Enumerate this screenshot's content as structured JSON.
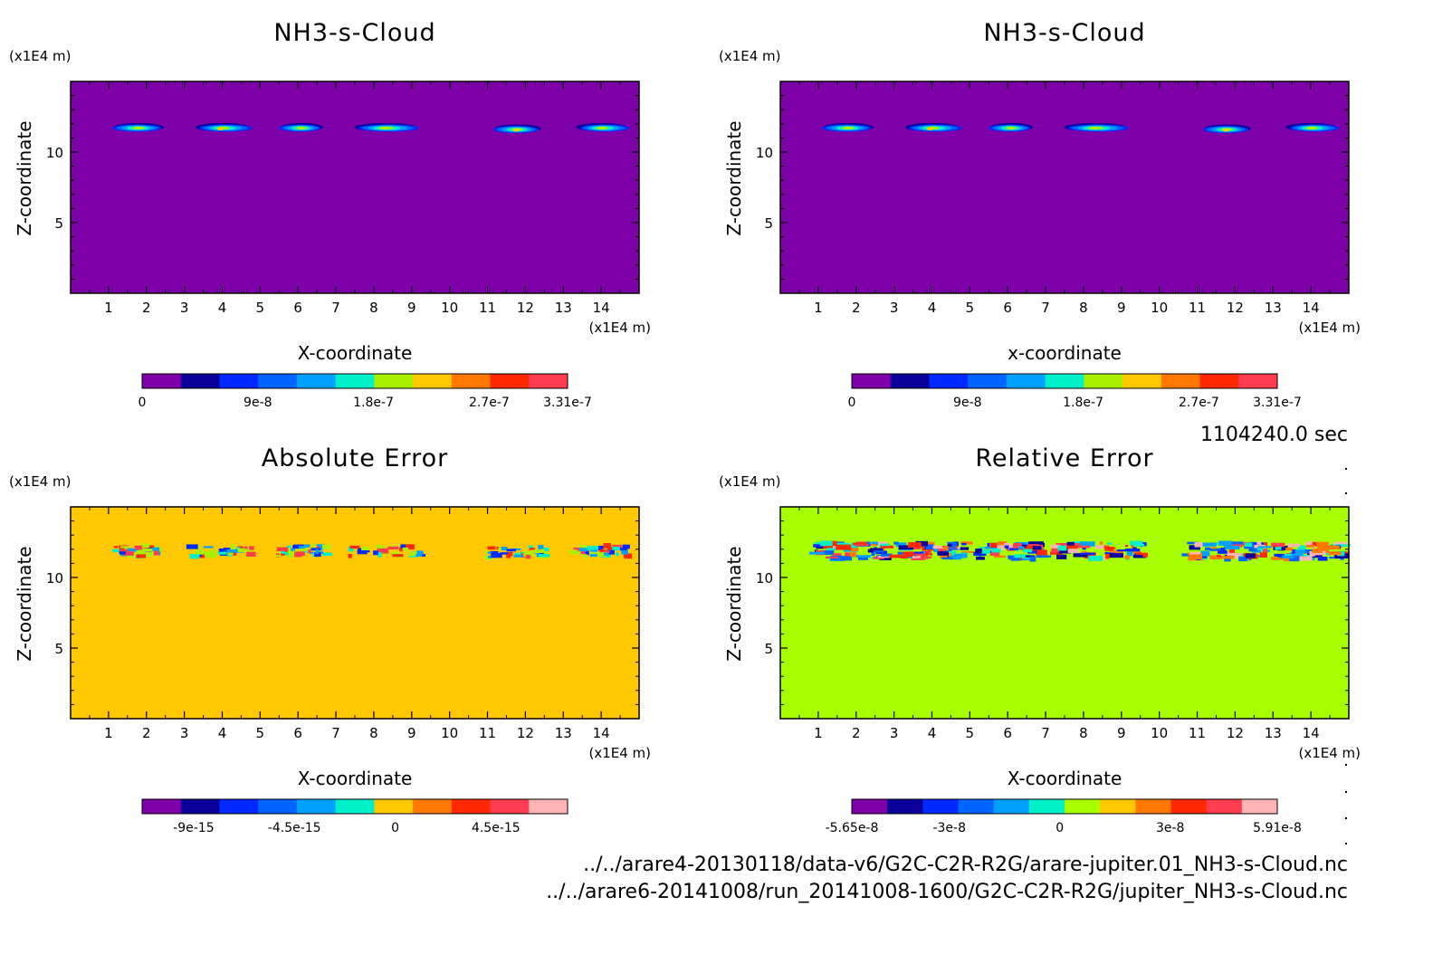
{
  "chart_data": [
    {
      "type": "heatmap",
      "title": "NH3-s-Cloud",
      "xlabel": "X-coordinate",
      "ylabel": "Z-coordinate",
      "x_unit": "(x1E4 m)",
      "y_unit": "(x1E4 m)",
      "xlim": [
        0,
        15
      ],
      "ylim": [
        0,
        15
      ],
      "xticks": [
        "1",
        "2",
        "3",
        "4",
        "5",
        "6",
        "7",
        "8",
        "9",
        "10",
        "11",
        "12",
        "13",
        "14"
      ],
      "yticks": [
        "5",
        "10"
      ],
      "background": "#7e00a8",
      "colorbar": {
        "colors": [
          "#7e00a8",
          "#0a0099",
          "#0028ff",
          "#0064ff",
          "#00a0ff",
          "#00f0c8",
          "#a8f000",
          "#ffc800",
          "#ff7800",
          "#ff2800",
          "#ff3c50"
        ],
        "tick_labels": [
          "0",
          "9e-8",
          "1.8e-7",
          "2.7e-7",
          "3.31e-7"
        ],
        "tick_values": [
          0,
          9e-08,
          1.8e-07,
          2.7e-07,
          3.31e-07
        ],
        "range": [
          0,
          3.31e-07
        ]
      },
      "features": [
        {
          "x": 1.8,
          "z": 11.7,
          "w": 1.3
        },
        {
          "x": 4.0,
          "z": 11.7,
          "w": 1.4
        },
        {
          "x": 6.1,
          "z": 11.7,
          "w": 1.1
        },
        {
          "x": 8.3,
          "z": 11.7,
          "w": 1.6
        },
        {
          "x": 11.8,
          "z": 11.6,
          "w": 1.2
        },
        {
          "x": 14.0,
          "z": 11.7,
          "w": 1.3
        }
      ]
    },
    {
      "type": "heatmap",
      "title": "NH3-s-Cloud",
      "xlabel": "x-coordinate",
      "ylabel": "Z-coordinate",
      "x_unit": "(x1E4 m)",
      "y_unit": "(x1E4 m)",
      "xlim": [
        0,
        15
      ],
      "ylim": [
        0,
        15
      ],
      "xticks": [
        "1",
        "2",
        "3",
        "4",
        "5",
        "6",
        "7",
        "8",
        "9",
        "10",
        "11",
        "12",
        "13",
        "14"
      ],
      "yticks": [
        "5",
        "10"
      ],
      "background": "#7e00a8",
      "colorbar": {
        "colors": [
          "#7e00a8",
          "#0a0099",
          "#0028ff",
          "#0064ff",
          "#00a0ff",
          "#00f0c8",
          "#a8f000",
          "#ffc800",
          "#ff7800",
          "#ff2800",
          "#ff3c50"
        ],
        "tick_labels": [
          "0",
          "9e-8",
          "1.8e-7",
          "2.7e-7",
          "3.31e-7"
        ],
        "tick_values": [
          0,
          9e-08,
          1.8e-07,
          2.7e-07,
          3.31e-07
        ],
        "range": [
          0,
          3.31e-07
        ]
      },
      "features": [
        {
          "x": 1.8,
          "z": 11.7,
          "w": 1.3
        },
        {
          "x": 4.0,
          "z": 11.7,
          "w": 1.4
        },
        {
          "x": 6.1,
          "z": 11.7,
          "w": 1.1
        },
        {
          "x": 8.3,
          "z": 11.7,
          "w": 1.6
        },
        {
          "x": 11.8,
          "z": 11.6,
          "w": 1.2
        },
        {
          "x": 14.0,
          "z": 11.7,
          "w": 1.3
        }
      ]
    },
    {
      "type": "heatmap",
      "title": "Absolute Error",
      "xlabel": "X-coordinate",
      "ylabel": "Z-coordinate",
      "x_unit": "(x1E4 m)",
      "y_unit": "(x1E4 m)",
      "xlim": [
        0,
        15
      ],
      "ylim": [
        0,
        15
      ],
      "xticks": [
        "1",
        "2",
        "3",
        "4",
        "5",
        "6",
        "7",
        "8",
        "9",
        "10",
        "11",
        "12",
        "13",
        "14"
      ],
      "yticks": [
        "5",
        "10"
      ],
      "background": "#ffc800",
      "colorbar": {
        "colors": [
          "#7e00a8",
          "#0a0099",
          "#0028ff",
          "#0064ff",
          "#00a0ff",
          "#00f0c8",
          "#ffc800",
          "#ff7800",
          "#ff2800",
          "#ff3c50",
          "#ffb4b4"
        ],
        "tick_labels": [
          "-9e-15",
          "-4.5e-15",
          "0",
          "4.5e-15"
        ],
        "tick_values": [
          -9e-15,
          -4.5e-15,
          0,
          4.5e-15
        ],
        "range": [
          -1.13e-14,
          7.7e-15
        ]
      },
      "features": [
        {
          "x": 1.8,
          "z": 12.0,
          "w": 1.5
        },
        {
          "x": 4.0,
          "z": 12.0,
          "w": 1.6
        },
        {
          "x": 6.1,
          "z": 12.0,
          "w": 1.4
        },
        {
          "x": 8.3,
          "z": 12.0,
          "w": 1.9
        },
        {
          "x": 11.8,
          "z": 11.9,
          "w": 1.6
        },
        {
          "x": 14.0,
          "z": 12.0,
          "w": 1.5
        }
      ]
    },
    {
      "type": "heatmap",
      "title": "Relative Error",
      "xlabel": "X-coordinate",
      "ylabel": "Z-coordinate",
      "x_unit": "(x1E4 m)",
      "y_unit": "(x1E4 m)",
      "xlim": [
        0,
        15
      ],
      "ylim": [
        0,
        15
      ],
      "xticks": [
        "1",
        "2",
        "3",
        "4",
        "5",
        "6",
        "7",
        "8",
        "9",
        "10",
        "11",
        "12",
        "13",
        "14"
      ],
      "yticks": [
        "5",
        "10"
      ],
      "background": "#a8ff00",
      "colorbar": {
        "colors": [
          "#7e00a8",
          "#0a0099",
          "#0028ff",
          "#0064ff",
          "#00a0ff",
          "#00f0c8",
          "#a8ff00",
          "#ffc800",
          "#ff7800",
          "#ff2800",
          "#ff3c50",
          "#ffb4b4"
        ],
        "tick_labels": [
          "-5.65e-8",
          "-3e-8",
          "0",
          "3e-8",
          "5.91e-8"
        ],
        "tick_values": [
          -5.65e-08,
          -3e-08,
          0,
          3e-08,
          5.91e-08
        ],
        "range": [
          -5.65e-08,
          5.91e-08
        ]
      },
      "features": [
        {
          "x": 1.9,
          "z": 12.0,
          "w": 1.9
        },
        {
          "x": 4.0,
          "z": 12.0,
          "w": 1.9
        },
        {
          "x": 6.1,
          "z": 12.0,
          "w": 1.8
        },
        {
          "x": 8.4,
          "z": 12.0,
          "w": 2.3
        },
        {
          "x": 11.8,
          "z": 12.0,
          "w": 2.1
        },
        {
          "x": 14.0,
          "z": 12.0,
          "w": 1.8
        }
      ]
    }
  ],
  "time_label": "1104240.0 sec",
  "footer": {
    "file1": "../../arare4-20130118/data-v6/G2C-C2R-R2G/arare-jupiter.01_NH3-s-Cloud.nc",
    "file2": "../../arare6-20141008/run_20141008-1600/G2C-C2R-R2G/jupiter_NH3-s-Cloud.nc"
  }
}
